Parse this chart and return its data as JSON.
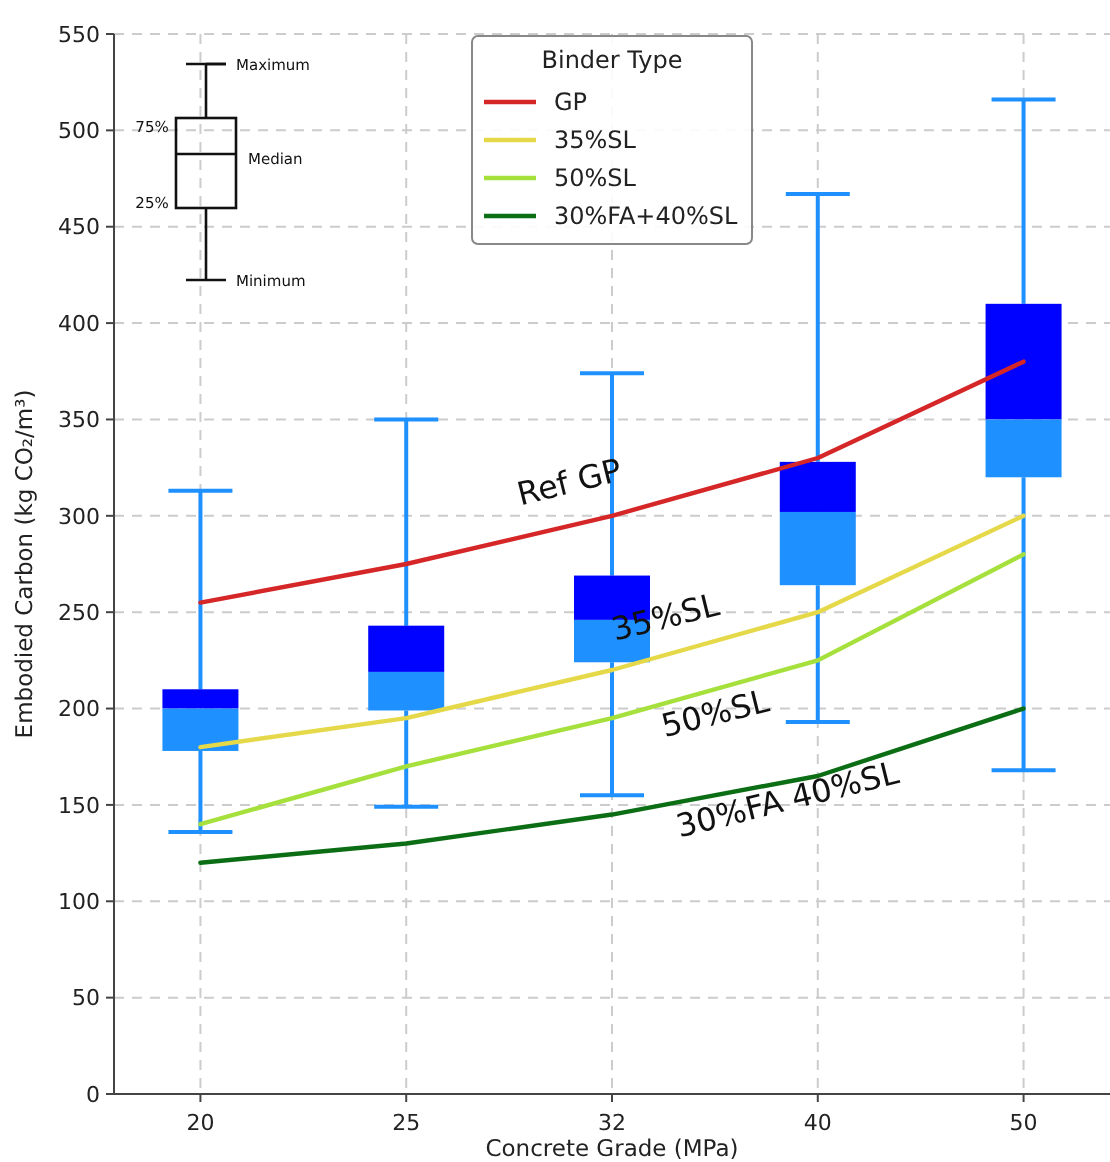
{
  "chart_data": {
    "type": "line",
    "xlabel": "Concrete Grade (MPa)",
    "ylabel": "Embodied Carbon (kg CO₂/m³)",
    "legend_title": "Binder Type",
    "categories": [
      "20",
      "25",
      "32",
      "40",
      "50"
    ],
    "ylim": [
      0,
      550
    ],
    "yticks": [
      0,
      50,
      100,
      150,
      200,
      250,
      300,
      350,
      400,
      450,
      500,
      550
    ],
    "grid": true,
    "legend": "top",
    "marker": "none",
    "line_style": "solid",
    "series": [
      {
        "type": "box",
        "color": "#1e90ff",
        "boxes": [
          {
            "low": 136,
            "q1": 178,
            "median": 200,
            "q3": 210,
            "high": 313
          },
          {
            "low": 149,
            "q1": 199,
            "median": 219,
            "q3": 243,
            "high": 350
          },
          {
            "low": 155,
            "q1": 224,
            "median": 246,
            "q3": 269,
            "high": 374
          },
          {
            "low": 193,
            "q1": 264,
            "median": 302,
            "q3": 328,
            "high": 467
          },
          {
            "low": 168,
            "q1": 320,
            "median": 350,
            "q3": 410,
            "high": 516
          }
        ]
      },
      {
        "name": "GP",
        "color": "#d62728",
        "values": [
          255,
          275,
          300,
          330,
          380
        ]
      },
      {
        "name": "35%SL",
        "color": "#e5d94a",
        "values": [
          180,
          195,
          220,
          250,
          300
        ]
      },
      {
        "name": "50%SL",
        "color": "#a6e03c",
        "values": [
          140,
          170,
          195,
          225,
          280
        ]
      },
      {
        "name": "30%FA+40%SL",
        "color": "#0b6e14",
        "values": [
          120,
          130,
          145,
          165,
          200
        ]
      }
    ],
    "annotations": [
      {
        "text": "Ref GP",
        "x": "32",
        "y": 312
      },
      {
        "text": "35%SL",
        "x": "32",
        "y": 242
      },
      {
        "text": "50%SL",
        "x": "40",
        "y": 192
      },
      "30%FA 40%SL",
      "Maximum",
      "75%",
      "Median",
      "25%",
      "Minimum"
    ]
  }
}
